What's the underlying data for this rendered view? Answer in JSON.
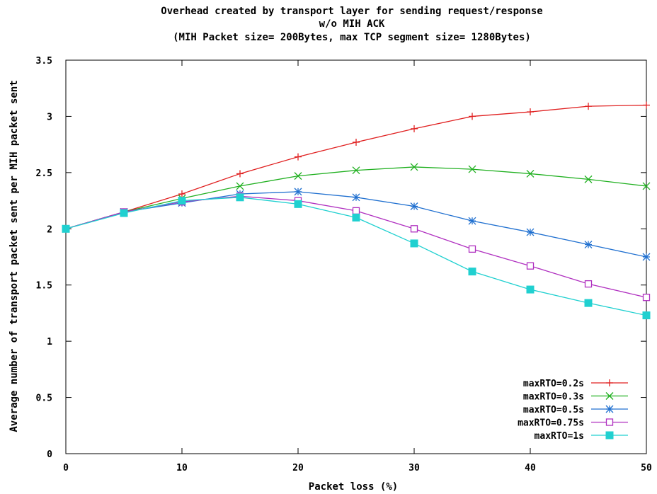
{
  "chart_data": {
    "type": "line",
    "title": [
      "Overhead created by transport layer for sending request/response",
      "w/o MIH ACK",
      "(MIH Packet size= 200Bytes, max TCP segment size= 1280Bytes)"
    ],
    "xlabel": "Packet loss (%)",
    "ylabel": "Average number of transport packet sent per MIH packet sent",
    "xlim": [
      0,
      50
    ],
    "ylim": [
      0,
      3.5
    ],
    "x_ticks": [
      "0",
      "10",
      "20",
      "30",
      "40",
      "50"
    ],
    "y_ticks": [
      "0",
      "0.5",
      "1",
      "1.5",
      "2",
      "2.5",
      "3",
      "3.5"
    ],
    "grid": false,
    "legend_position": "bottom-right",
    "x": [
      0,
      5,
      10,
      15,
      20,
      25,
      30,
      35,
      40,
      45,
      50
    ],
    "series": [
      {
        "name": "maxRTO=0.2s",
        "color": "#e02020",
        "marker": "plus",
        "values": [
          2.0,
          2.15,
          2.31,
          2.49,
          2.64,
          2.77,
          2.89,
          3.0,
          3.04,
          3.09,
          3.1
        ]
      },
      {
        "name": "maxRTO=0.3s",
        "color": "#20b020",
        "marker": "cross",
        "values": [
          2.0,
          2.15,
          2.27,
          2.38,
          2.47,
          2.52,
          2.55,
          2.53,
          2.49,
          2.44,
          2.38
        ]
      },
      {
        "name": "maxRTO=0.5s",
        "color": "#2070d0",
        "marker": "star",
        "values": [
          2.0,
          2.15,
          2.23,
          2.31,
          2.33,
          2.28,
          2.2,
          2.07,
          1.97,
          1.86,
          1.75
        ]
      },
      {
        "name": "maxRTO=0.75s",
        "color": "#b030c0",
        "marker": "square-open",
        "values": [
          2.0,
          2.15,
          2.24,
          2.29,
          2.25,
          2.16,
          2.0,
          1.82,
          1.67,
          1.51,
          1.39
        ]
      },
      {
        "name": "maxRTO=1s",
        "color": "#20d0d0",
        "marker": "square-filled",
        "values": [
          2.0,
          2.14,
          2.25,
          2.28,
          2.22,
          2.1,
          1.87,
          1.62,
          1.46,
          1.34,
          1.23
        ]
      }
    ]
  }
}
